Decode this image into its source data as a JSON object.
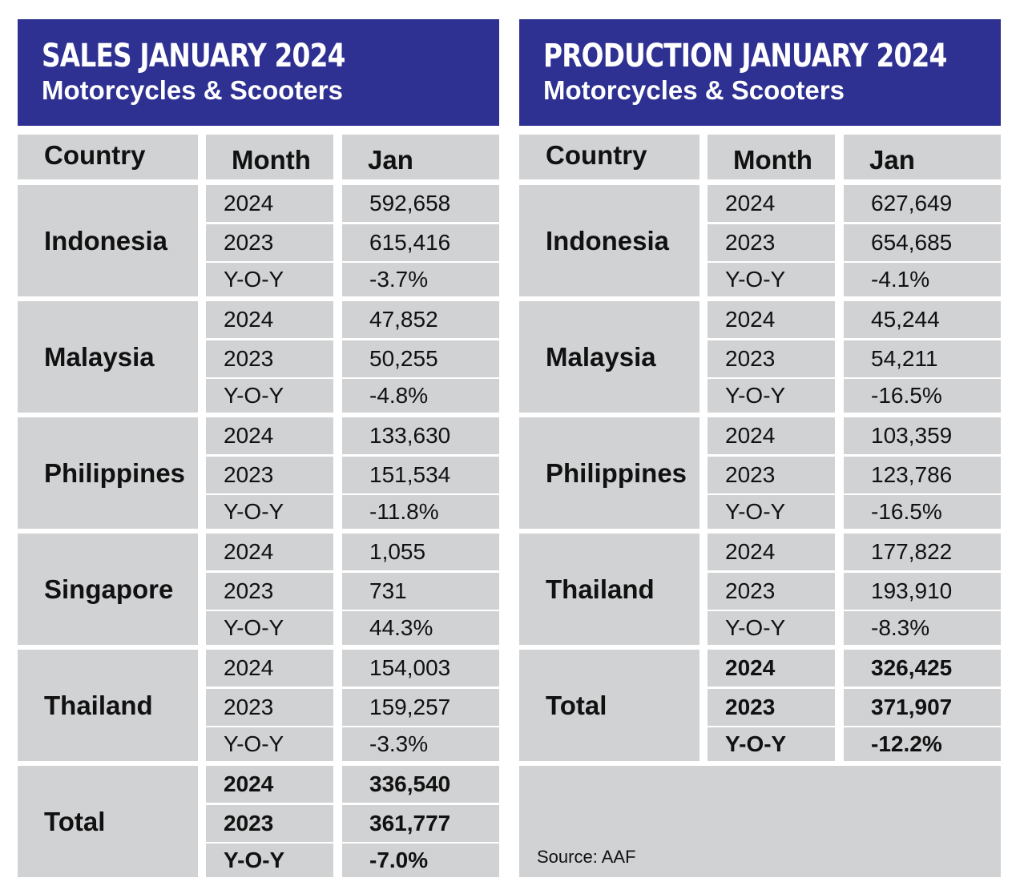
{
  "sales": {
    "title": "SALES JANUARY 2024",
    "subtitle": "Motorcycles & Scooters",
    "headers": {
      "country": "Country",
      "month": "Month",
      "jan": "Jan"
    },
    "rows": [
      {
        "country": "Indonesia",
        "lines": [
          {
            "label": "2024",
            "value": "592,658"
          },
          {
            "label": "2023",
            "value": "615,416"
          },
          {
            "label": "Y-O-Y",
            "value": "-3.7%"
          }
        ]
      },
      {
        "country": "Malaysia",
        "lines": [
          {
            "label": "2024",
            "value": "47,852"
          },
          {
            "label": "2023",
            "value": "50,255"
          },
          {
            "label": "Y-O-Y",
            "value": "-4.8%"
          }
        ]
      },
      {
        "country": "Philippines",
        "lines": [
          {
            "label": "2024",
            "value": "133,630"
          },
          {
            "label": "2023",
            "value": "151,534"
          },
          {
            "label": "Y-O-Y",
            "value": "-11.8%"
          }
        ]
      },
      {
        "country": "Singapore",
        "lines": [
          {
            "label": "2024",
            "value": "1,055"
          },
          {
            "label": "2023",
            "value": "731"
          },
          {
            "label": "Y-O-Y",
            "value": "44.3%"
          }
        ]
      },
      {
        "country": "Thailand",
        "lines": [
          {
            "label": "2024",
            "value": "154,003"
          },
          {
            "label": "2023",
            "value": "159,257"
          },
          {
            "label": "Y-O-Y",
            "value": "-3.3%"
          }
        ]
      },
      {
        "country": "Total",
        "lines": [
          {
            "label": "2024",
            "value": "336,540"
          },
          {
            "label": "2023",
            "value": "361,777"
          },
          {
            "label": "Y-O-Y",
            "value": "-7.0%"
          }
        ]
      }
    ]
  },
  "production": {
    "title": "PRODUCTION JANUARY 2024",
    "subtitle": "Motorcycles & Scooters",
    "headers": {
      "country": "Country",
      "month": "Month",
      "jan": "Jan"
    },
    "rows": [
      {
        "country": "Indonesia",
        "lines": [
          {
            "label": "2024",
            "value": "627,649"
          },
          {
            "label": "2023",
            "value": "654,685"
          },
          {
            "label": "Y-O-Y",
            "value": "-4.1%"
          }
        ]
      },
      {
        "country": "Malaysia",
        "lines": [
          {
            "label": "2024",
            "value": "45,244"
          },
          {
            "label": "2023",
            "value": "54,211"
          },
          {
            "label": "Y-O-Y",
            "value": "-16.5%"
          }
        ]
      },
      {
        "country": "Philippines",
        "lines": [
          {
            "label": "2024",
            "value": "103,359"
          },
          {
            "label": "2023",
            "value": "123,786"
          },
          {
            "label": "Y-O-Y",
            "value": "-16.5%"
          }
        ]
      },
      {
        "country": "Thailand",
        "lines": [
          {
            "label": "2024",
            "value": "177,822"
          },
          {
            "label": "2023",
            "value": "193,910"
          },
          {
            "label": "Y-O-Y",
            "value": "-8.3%"
          }
        ]
      },
      {
        "country": "Total",
        "lines": [
          {
            "label": "2024",
            "value": "326,425"
          },
          {
            "label": "2023",
            "value": "371,907"
          },
          {
            "label": "Y-O-Y",
            "value": "-12.2%"
          }
        ]
      }
    ],
    "source": "Source: AAF"
  }
}
